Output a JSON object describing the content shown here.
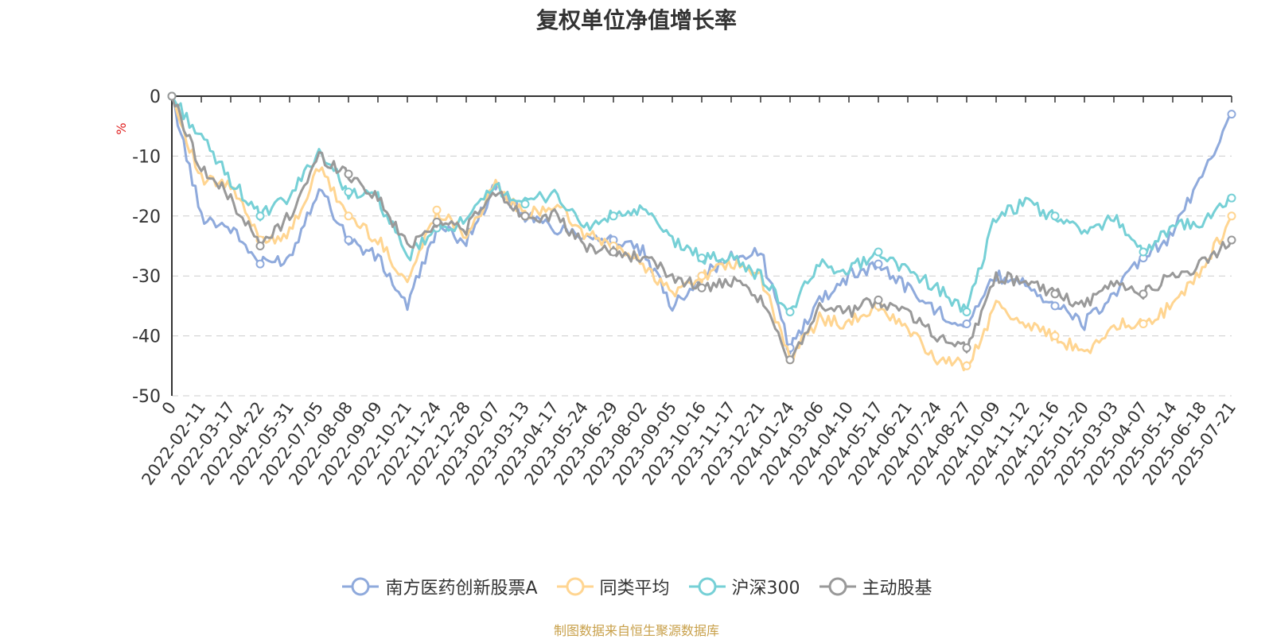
{
  "chart_data": {
    "type": "line",
    "title": "复权单位净值增长率",
    "ylabel": "%",
    "ylim": [
      -50,
      0
    ],
    "yticks": [
      0,
      -10,
      -20,
      -30,
      -40,
      -50
    ],
    "grid": true,
    "legend_position": "bottom",
    "x_tick_labels": [
      "0",
      "2022-02-11",
      "2022-03-17",
      "2022-04-22",
      "2022-05-31",
      "2022-07-05",
      "2022-08-08",
      "2022-09-09",
      "2022-10-21",
      "2022-11-24",
      "2022-12-28",
      "2023-02-07",
      "2023-03-13",
      "2023-04-17",
      "2023-05-24",
      "2023-06-29",
      "2023-08-02",
      "2023-09-05",
      "2023-10-16",
      "2023-11-17",
      "2023-12-21",
      "2024-01-24",
      "2024-03-06",
      "2024-04-10",
      "2024-05-17",
      "2024-06-21",
      "2024-07-24",
      "2024-08-27",
      "2024-10-09",
      "2024-11-12",
      "2024-12-16",
      "2025-01-20",
      "2025-03-03",
      "2025-04-07",
      "2025-05-14",
      "2025-06-18",
      "2025-07-21"
    ],
    "series": [
      {
        "name": "南方医药创新股票A",
        "color": "#8faadc",
        "values": [
          0,
          -20,
          -22,
          -28,
          -27,
          -15,
          -24,
          -27,
          -35,
          -22,
          -24,
          -15,
          -20,
          -22,
          -23,
          -24,
          -26,
          -35,
          -30,
          -27,
          -26,
          -42,
          -34,
          -30,
          -28,
          -32,
          -36,
          -38,
          -30,
          -31,
          -35,
          -38,
          -33,
          -27,
          -23,
          -13,
          -3
        ]
      },
      {
        "name": "同类平均",
        "color": "#ffd591",
        "values": [
          0,
          -14,
          -15,
          -24,
          -23,
          -12,
          -20,
          -24,
          -31,
          -19,
          -23,
          -15,
          -20,
          -18,
          -23,
          -25,
          -28,
          -33,
          -30,
          -28,
          -30,
          -44,
          -37,
          -38,
          -35,
          -39,
          -44,
          -45,
          -35,
          -38,
          -40,
          -43,
          -38,
          -38,
          -35,
          -29,
          -20
        ]
      },
      {
        "name": "沪深300",
        "color": "#76d0d6",
        "values": [
          0,
          -7,
          -14,
          -20,
          -17,
          -9,
          -16,
          -17,
          -27,
          -22,
          -21,
          -15,
          -18,
          -16,
          -22,
          -20,
          -19,
          -24,
          -27,
          -27,
          -30,
          -36,
          -28,
          -29,
          -26,
          -29,
          -32,
          -36,
          -20,
          -18,
          -20,
          -23,
          -20,
          -26,
          -22,
          -21,
          -17
        ]
      },
      {
        "name": "主动股基",
        "color": "#999999",
        "values": [
          0,
          -12,
          -17,
          -25,
          -20,
          -10,
          -13,
          -17,
          -25,
          -21,
          -22,
          -16,
          -20,
          -20,
          -25,
          -26,
          -27,
          -30,
          -32,
          -31,
          -34,
          -44,
          -35,
          -36,
          -34,
          -36,
          -40,
          -42,
          -30,
          -31,
          -33,
          -35,
          -31,
          -33,
          -30,
          -28,
          -24
        ]
      }
    ]
  },
  "footer": {
    "source": "制图数据来自恒生聚源数据库"
  }
}
